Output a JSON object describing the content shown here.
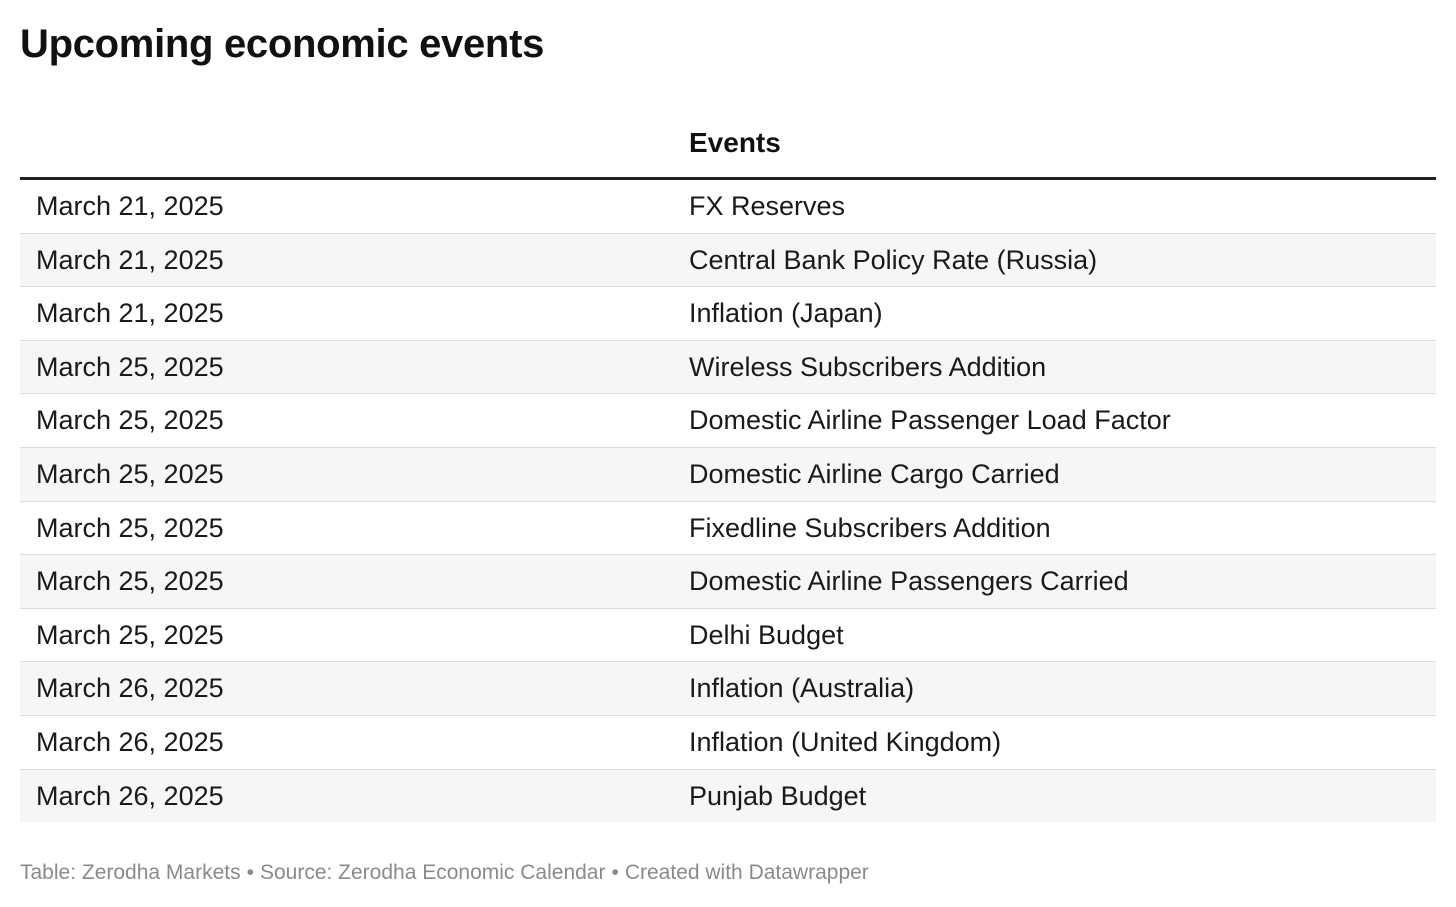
{
  "title": "Upcoming economic events",
  "table": {
    "headers": [
      "",
      "Events"
    ],
    "rows": [
      {
        "date": "March 21, 2025",
        "event": "FX Reserves"
      },
      {
        "date": "March 21, 2025",
        "event": "Central Bank Policy Rate (Russia)"
      },
      {
        "date": "March 21, 2025",
        "event": "Inflation (Japan)"
      },
      {
        "date": "March 25, 2025",
        "event": "Wireless Subscribers Addition"
      },
      {
        "date": "March 25, 2025",
        "event": "Domestic Airline Passenger Load Factor"
      },
      {
        "date": "March 25, 2025",
        "event": "Domestic Airline Cargo Carried"
      },
      {
        "date": "March 25, 2025",
        "event": "Fixedline Subscribers Addition"
      },
      {
        "date": "March 25, 2025",
        "event": "Domestic Airline Passengers Carried"
      },
      {
        "date": "March 25, 2025",
        "event": "Delhi Budget"
      },
      {
        "date": "March 26, 2025",
        "event": "Inflation (Australia)"
      },
      {
        "date": "March 26, 2025",
        "event": "Inflation (United Kingdom)"
      },
      {
        "date": "March 26, 2025",
        "event": "Punjab Budget"
      }
    ]
  },
  "footer": {
    "table_credit": "Table: Zerodha Markets",
    "separator": "•",
    "source": "Source: Zerodha Economic Calendar",
    "created_with": "Created with Datawrapper"
  }
}
